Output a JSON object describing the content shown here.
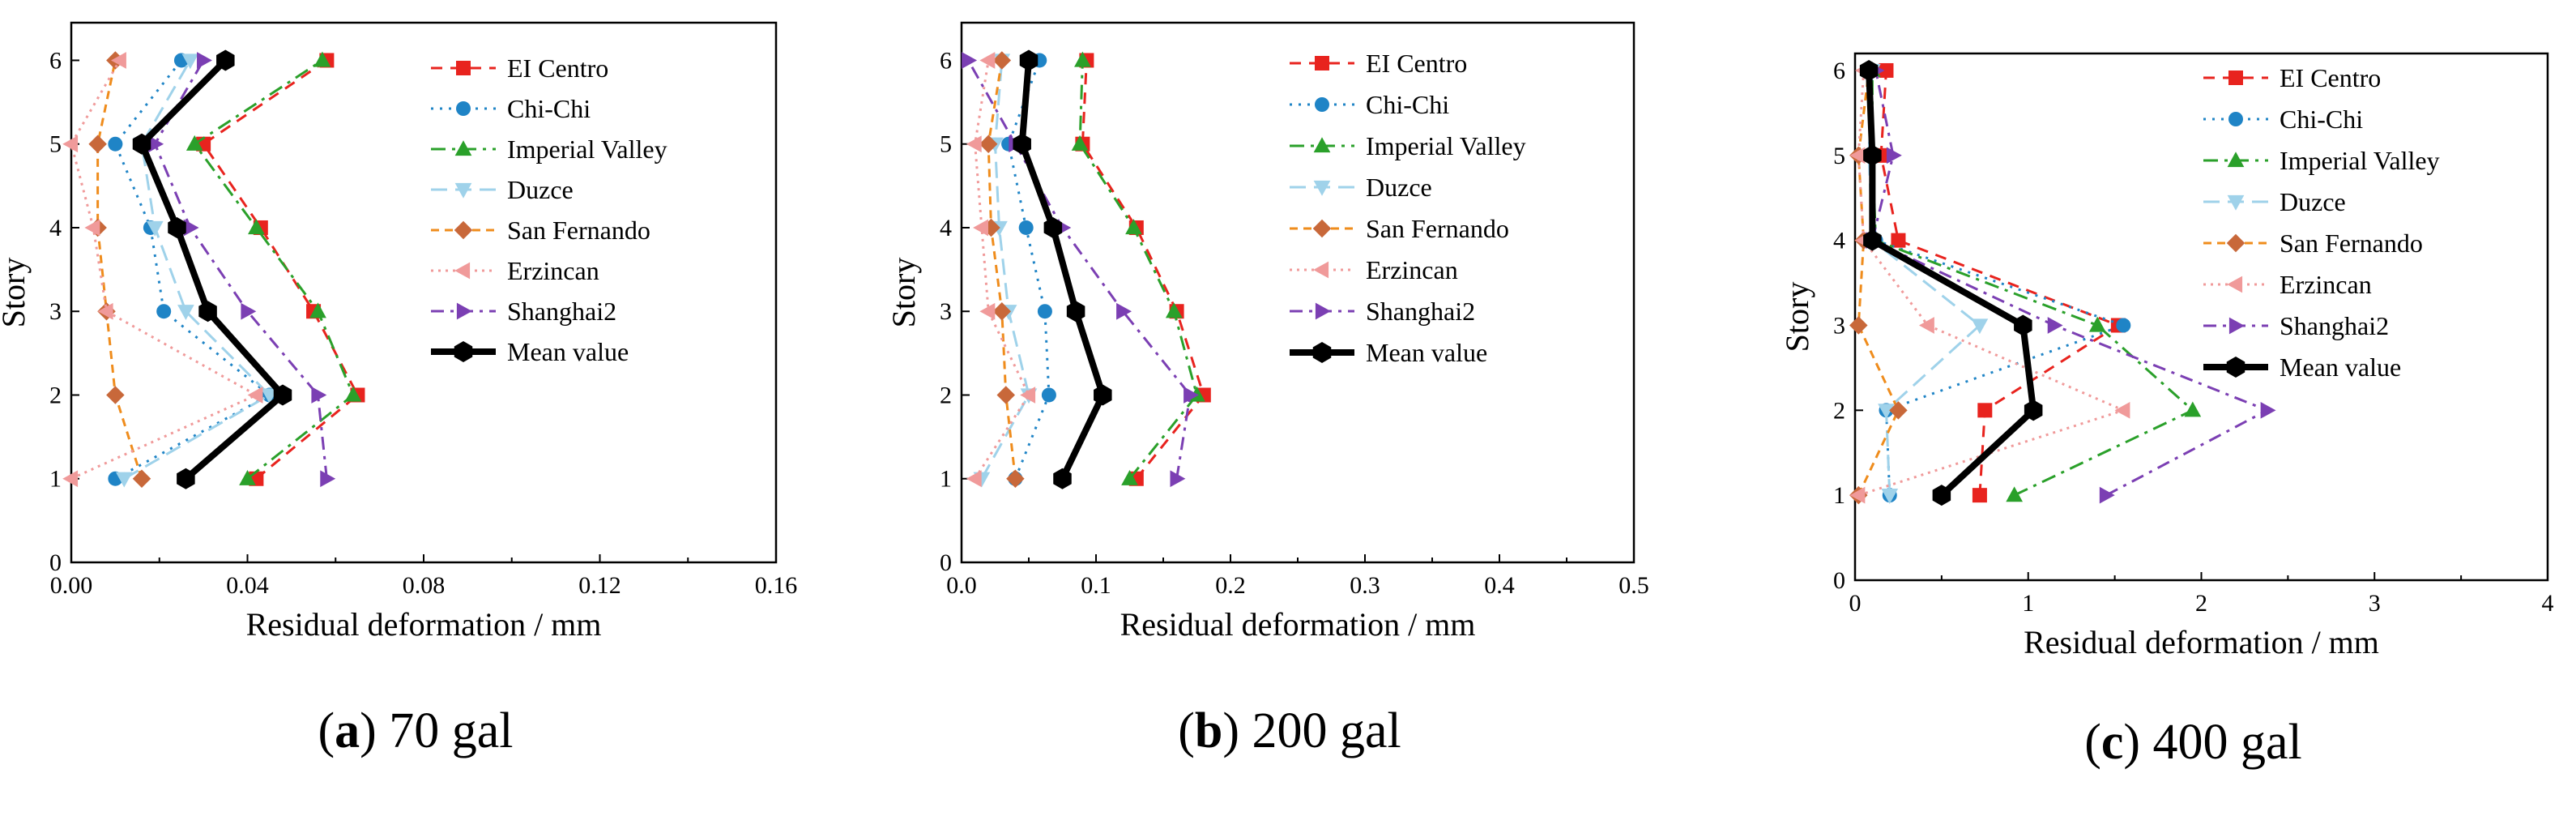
{
  "figure": {
    "colors": {
      "EI Centro": "#e8231e",
      "Chi-Chi": "#1f84c6",
      "Imperial Valley": "#2aa02a",
      "Duzce": "#9fd2ea",
      "San Fernando": "#ef8c1c",
      "Erzincan": "#f09a9a",
      "Shanghai2": "#7b3fb3",
      "Mean value": "#000000"
    },
    "marker_colors": {
      "San Fernando": "#c8683a"
    }
  },
  "chart_data": [
    {
      "type": "line",
      "caption_letter": "a",
      "caption_rest": " 70 gal",
      "xlabel": "Residual deformation / mm",
      "ylabel": "Story",
      "xlim": [
        0,
        0.16
      ],
      "ylim": [
        0,
        6.45
      ],
      "xticks": [
        "0.00",
        "0.04",
        "0.08",
        "0.12",
        "0.16"
      ],
      "xtick_values": [
        0,
        0.04,
        0.08,
        0.12,
        0.16
      ],
      "yticks": [
        "0",
        "1",
        "2",
        "3",
        "4",
        "5",
        "6"
      ],
      "yvalues": [
        1,
        2,
        3,
        4,
        5,
        6
      ],
      "legend": [
        "EI Centro",
        "Chi-Chi",
        "Imperial Valley",
        "Duzce",
        "San Fernando",
        "Erzincan",
        "Shanghai2",
        "Mean value"
      ],
      "series": [
        {
          "name": "EI Centro",
          "values": [
            0.042,
            0.065,
            0.055,
            0.043,
            0.03,
            0.058
          ]
        },
        {
          "name": "Chi-Chi",
          "values": [
            0.01,
            0.045,
            0.021,
            0.018,
            0.01,
            0.025
          ]
        },
        {
          "name": "Imperial Valley",
          "values": [
            0.04,
            0.064,
            0.056,
            0.042,
            0.028,
            0.057
          ]
        },
        {
          "name": "Duzce",
          "values": [
            0.012,
            0.045,
            0.026,
            0.019,
            0.016,
            0.027
          ]
        },
        {
          "name": "San Fernando",
          "values": [
            0.016,
            0.01,
            0.008,
            0.006,
            0.006,
            0.01
          ]
        },
        {
          "name": "Erzincan",
          "values": [
            0.0,
            0.042,
            0.008,
            0.005,
            0.0,
            0.011
          ]
        },
        {
          "name": "Shanghai2",
          "values": [
            0.058,
            0.056,
            0.04,
            0.027,
            0.019,
            0.03
          ]
        },
        {
          "name": "Mean value",
          "values": [
            0.026,
            0.048,
            0.031,
            0.024,
            0.016,
            0.035
          ]
        }
      ]
    },
    {
      "type": "line",
      "caption_letter": "b",
      "caption_rest": " 200 gal",
      "xlabel": "Residual deformation / mm",
      "ylabel": "Story",
      "xlim": [
        0,
        0.5
      ],
      "ylim": [
        0,
        6.45
      ],
      "xticks": [
        "0.0",
        "0.1",
        "0.2",
        "0.3",
        "0.4",
        "0.5"
      ],
      "xtick_values": [
        0,
        0.1,
        0.2,
        0.3,
        0.4,
        0.5
      ],
      "yticks": [
        "0",
        "1",
        "2",
        "3",
        "4",
        "5",
        "6"
      ],
      "yvalues": [
        1,
        2,
        3,
        4,
        5,
        6
      ],
      "legend": [
        "EI Centro",
        "Chi-Chi",
        "Imperial Valley",
        "Duzce",
        "San Fernando",
        "Erzincan",
        "Shanghai2",
        "Mean value"
      ],
      "series": [
        {
          "name": "EI Centro",
          "values": [
            0.13,
            0.18,
            0.16,
            0.13,
            0.09,
            0.093
          ]
        },
        {
          "name": "Chi-Chi",
          "values": [
            0.04,
            0.065,
            0.062,
            0.048,
            0.035,
            0.058
          ]
        },
        {
          "name": "Imperial Valley",
          "values": [
            0.125,
            0.175,
            0.158,
            0.128,
            0.088,
            0.09
          ]
        },
        {
          "name": "Duzce",
          "values": [
            0.015,
            0.05,
            0.035,
            0.028,
            0.025,
            0.03
          ]
        },
        {
          "name": "San Fernando",
          "values": [
            0.04,
            0.033,
            0.03,
            0.022,
            0.02,
            0.03
          ]
        },
        {
          "name": "Erzincan",
          "values": [
            0.01,
            0.05,
            0.02,
            0.015,
            0.01,
            0.02
          ]
        },
        {
          "name": "Shanghai2",
          "values": [
            0.16,
            0.17,
            0.12,
            0.075,
            0.04,
            0.005
          ]
        },
        {
          "name": "Mean value",
          "values": [
            0.075,
            0.105,
            0.085,
            0.068,
            0.045,
            0.05
          ]
        }
      ]
    },
    {
      "type": "line",
      "caption_letter": "c",
      "caption_rest": " 400 gal",
      "xlabel": "Residual deformation / mm",
      "ylabel": "Story",
      "xlim": [
        0,
        4
      ],
      "ylim": [
        0,
        6.2
      ],
      "xticks": [
        "0",
        "1",
        "2",
        "3",
        "4"
      ],
      "xtick_values": [
        0,
        1,
        2,
        3,
        4
      ],
      "yticks": [
        "0",
        "1",
        "2",
        "3",
        "4",
        "5",
        "6"
      ],
      "yvalues": [
        1,
        2,
        3,
        4,
        5,
        6
      ],
      "legend": [
        "EI Centro",
        "Chi-Chi",
        "Imperial Valley",
        "Duzce",
        "San Fernando",
        "Erzincan",
        "Shanghai2",
        "Mean value"
      ],
      "series": [
        {
          "name": "EI Centro",
          "values": [
            0.72,
            0.75,
            1.52,
            0.25,
            0.15,
            0.18
          ]
        },
        {
          "name": "Chi-Chi",
          "values": [
            0.2,
            0.18,
            1.55,
            0.12,
            0.08,
            0.1
          ]
        },
        {
          "name": "Imperial Valley",
          "values": [
            0.92,
            1.95,
            1.4,
            0.12,
            0.1,
            0.1
          ]
        },
        {
          "name": "Duzce",
          "values": [
            0.2,
            0.18,
            0.72,
            0.1,
            0.08,
            0.1
          ]
        },
        {
          "name": "San Fernando",
          "values": [
            0.02,
            0.25,
            0.02,
            0.05,
            0.02,
            0.08
          ]
        },
        {
          "name": "Erzincan",
          "values": [
            0.02,
            1.55,
            0.42,
            0.05,
            0.02,
            0.05
          ]
        },
        {
          "name": "Shanghai2",
          "values": [
            1.45,
            2.38,
            1.15,
            0.1,
            0.22,
            0.12
          ]
        },
        {
          "name": "Mean value",
          "values": [
            0.5,
            1.03,
            0.97,
            0.1,
            0.1,
            0.08
          ]
        }
      ]
    }
  ]
}
